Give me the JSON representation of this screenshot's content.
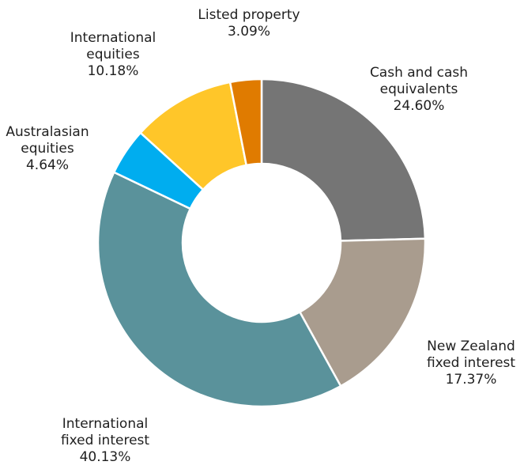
{
  "chart_data": {
    "type": "pie",
    "donut": true,
    "title": "",
    "slices": [
      {
        "name": "Cash and cash equivalents",
        "label_lines": [
          "Cash and cash",
          "equivalents"
        ],
        "value": 24.6,
        "value_label": "24.60%",
        "color": "#757575"
      },
      {
        "name": "New Zealand fixed interest",
        "label_lines": [
          "New Zealand",
          "fixed interest"
        ],
        "value": 17.37,
        "value_label": "17.37%",
        "color": "#a99c8e"
      },
      {
        "name": "International fixed interest",
        "label_lines": [
          "International",
          "fixed interest"
        ],
        "value": 40.13,
        "value_label": "40.13%",
        "color": "#5a929b"
      },
      {
        "name": "Australasian equities",
        "label_lines": [
          "Australasian",
          "equities"
        ],
        "value": 4.64,
        "value_label": "4.64%",
        "color": "#00adef"
      },
      {
        "name": "International equities",
        "label_lines": [
          "International",
          "equities"
        ],
        "value": 10.18,
        "value_label": "10.18%",
        "color": "#ffc629"
      },
      {
        "name": "Listed property",
        "label_lines": [
          "Listed property"
        ],
        "value": 3.09,
        "value_label": "3.09%",
        "color": "#e07b00"
      }
    ]
  }
}
